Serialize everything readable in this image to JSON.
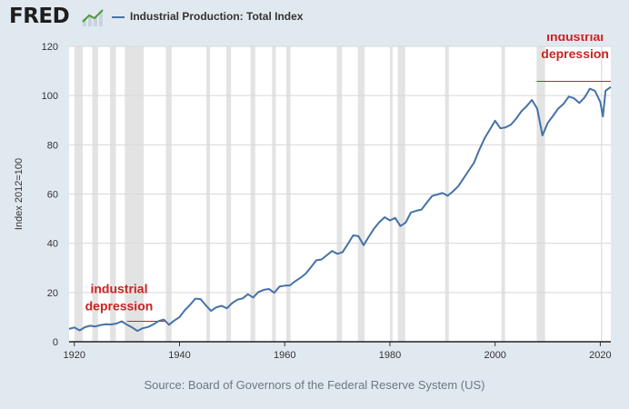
{
  "header": {
    "logo_text": "FRED",
    "logo_icon": "chart-trend-icon",
    "legend_label": "Industrial Production: Total Index"
  },
  "source_note": "Source: Board of Governors of the Federal Reserve System (US)",
  "colors": {
    "background": "#e1e9f0",
    "plot_background": "#ffffff",
    "series": "#4572a7",
    "recession_band": "#e3e3e3",
    "annotation": "#cc2222"
  },
  "chart_data": {
    "type": "line",
    "title": "",
    "xlabel": "",
    "ylabel": "Index 2012=100",
    "xlim": [
      1919,
      2022
    ],
    "ylim": [
      0,
      120
    ],
    "x_ticks": [
      1920,
      1940,
      1960,
      1980,
      2000,
      2020
    ],
    "y_ticks": [
      0,
      20,
      40,
      60,
      80,
      100,
      120
    ],
    "grid": "horizontal",
    "legend": "top-left",
    "series": [
      {
        "name": "Industrial Production: Total Index",
        "x": [
          1919,
          1920,
          1921,
          1922,
          1923,
          1924,
          1925,
          1926,
          1927,
          1928,
          1929,
          1930,
          1931,
          1932,
          1933,
          1934,
          1935,
          1936,
          1937,
          1938,
          1939,
          1940,
          1941,
          1942,
          1943,
          1944,
          1945,
          1946,
          1947,
          1948,
          1949,
          1950,
          1951,
          1952,
          1953,
          1954,
          1955,
          1956,
          1957,
          1958,
          1959,
          1960,
          1961,
          1962,
          1963,
          1964,
          1965,
          1966,
          1967,
          1968,
          1969,
          1970,
          1971,
          1972,
          1973,
          1974,
          1975,
          1976,
          1977,
          1978,
          1979,
          1980,
          1981,
          1982,
          1983,
          1984,
          1985,
          1986,
          1987,
          1988,
          1989,
          1990,
          1991,
          1992,
          1993,
          1994,
          1995,
          1996,
          1997,
          1998,
          1999,
          2000,
          2001,
          2002,
          2003,
          2004,
          2005,
          2006,
          2007,
          2008,
          2009,
          2010,
          2011,
          2012,
          2013,
          2014,
          2015,
          2016,
          2017,
          2018,
          2019,
          2020,
          2020.5,
          2021,
          2022
        ],
        "values": [
          5.2,
          5.8,
          4.6,
          5.9,
          6.5,
          6.2,
          6.8,
          7.1,
          7.0,
          7.4,
          8.3,
          6.9,
          5.8,
          4.4,
          5.5,
          6.0,
          7.0,
          8.4,
          9.0,
          6.9,
          8.6,
          10.0,
          12.8,
          15.0,
          17.5,
          17.3,
          14.8,
          12.5,
          14.0,
          14.6,
          13.6,
          15.7,
          17.1,
          17.6,
          19.3,
          18.0,
          20.2,
          21.1,
          21.4,
          19.9,
          22.4,
          22.8,
          22.9,
          24.6,
          26.0,
          27.7,
          30.3,
          33.1,
          33.4,
          35.1,
          36.9,
          35.7,
          36.4,
          39.7,
          43.2,
          42.9,
          39.2,
          42.7,
          46.0,
          48.6,
          50.6,
          49.3,
          50.3,
          47.0,
          48.4,
          52.5,
          53.2,
          53.7,
          56.5,
          59.2,
          59.8,
          60.4,
          59.3,
          61.1,
          63.2,
          66.4,
          69.6,
          72.8,
          78.0,
          82.6,
          86.2,
          89.8,
          86.7,
          87.1,
          88.2,
          90.6,
          93.6,
          95.7,
          98.2,
          94.7,
          83.8,
          88.9,
          91.7,
          94.7,
          96.6,
          99.6,
          98.9,
          97.0,
          99.2,
          102.8,
          101.9,
          97.4,
          91.5,
          102.0,
          103.5
        ]
      }
    ],
    "recessions": [
      [
        1920.0,
        1921.6
      ],
      [
        1923.4,
        1924.5
      ],
      [
        1926.8,
        1927.9
      ],
      [
        1929.6,
        1933.2
      ],
      [
        1937.4,
        1938.5
      ],
      [
        1945.1,
        1945.8
      ],
      [
        1948.9,
        1949.8
      ],
      [
        1953.5,
        1954.4
      ],
      [
        1957.6,
        1958.3
      ],
      [
        1960.3,
        1961.1
      ],
      [
        1969.9,
        1970.9
      ],
      [
        1973.9,
        1975.2
      ],
      [
        1980.0,
        1980.5
      ],
      [
        1981.5,
        1982.9
      ],
      [
        1990.5,
        1991.2
      ],
      [
        2001.2,
        2001.9
      ],
      [
        2007.9,
        2009.5
      ],
      [
        2020.1,
        2020.3
      ]
    ],
    "annotations": [
      {
        "text": [
          "industrial",
          "depression"
        ],
        "x": 1928.5,
        "y_top": 19.8,
        "line_from": 1930.0,
        "line_to": 1937.4,
        "line_y": 8.3
      },
      {
        "text": [
          "industrial",
          "depression"
        ],
        "x": 2015.2,
        "y_top": 122.3,
        "line_from": 2007.9,
        "line_to": 2022.0,
        "line_y": 105.8
      }
    ]
  }
}
